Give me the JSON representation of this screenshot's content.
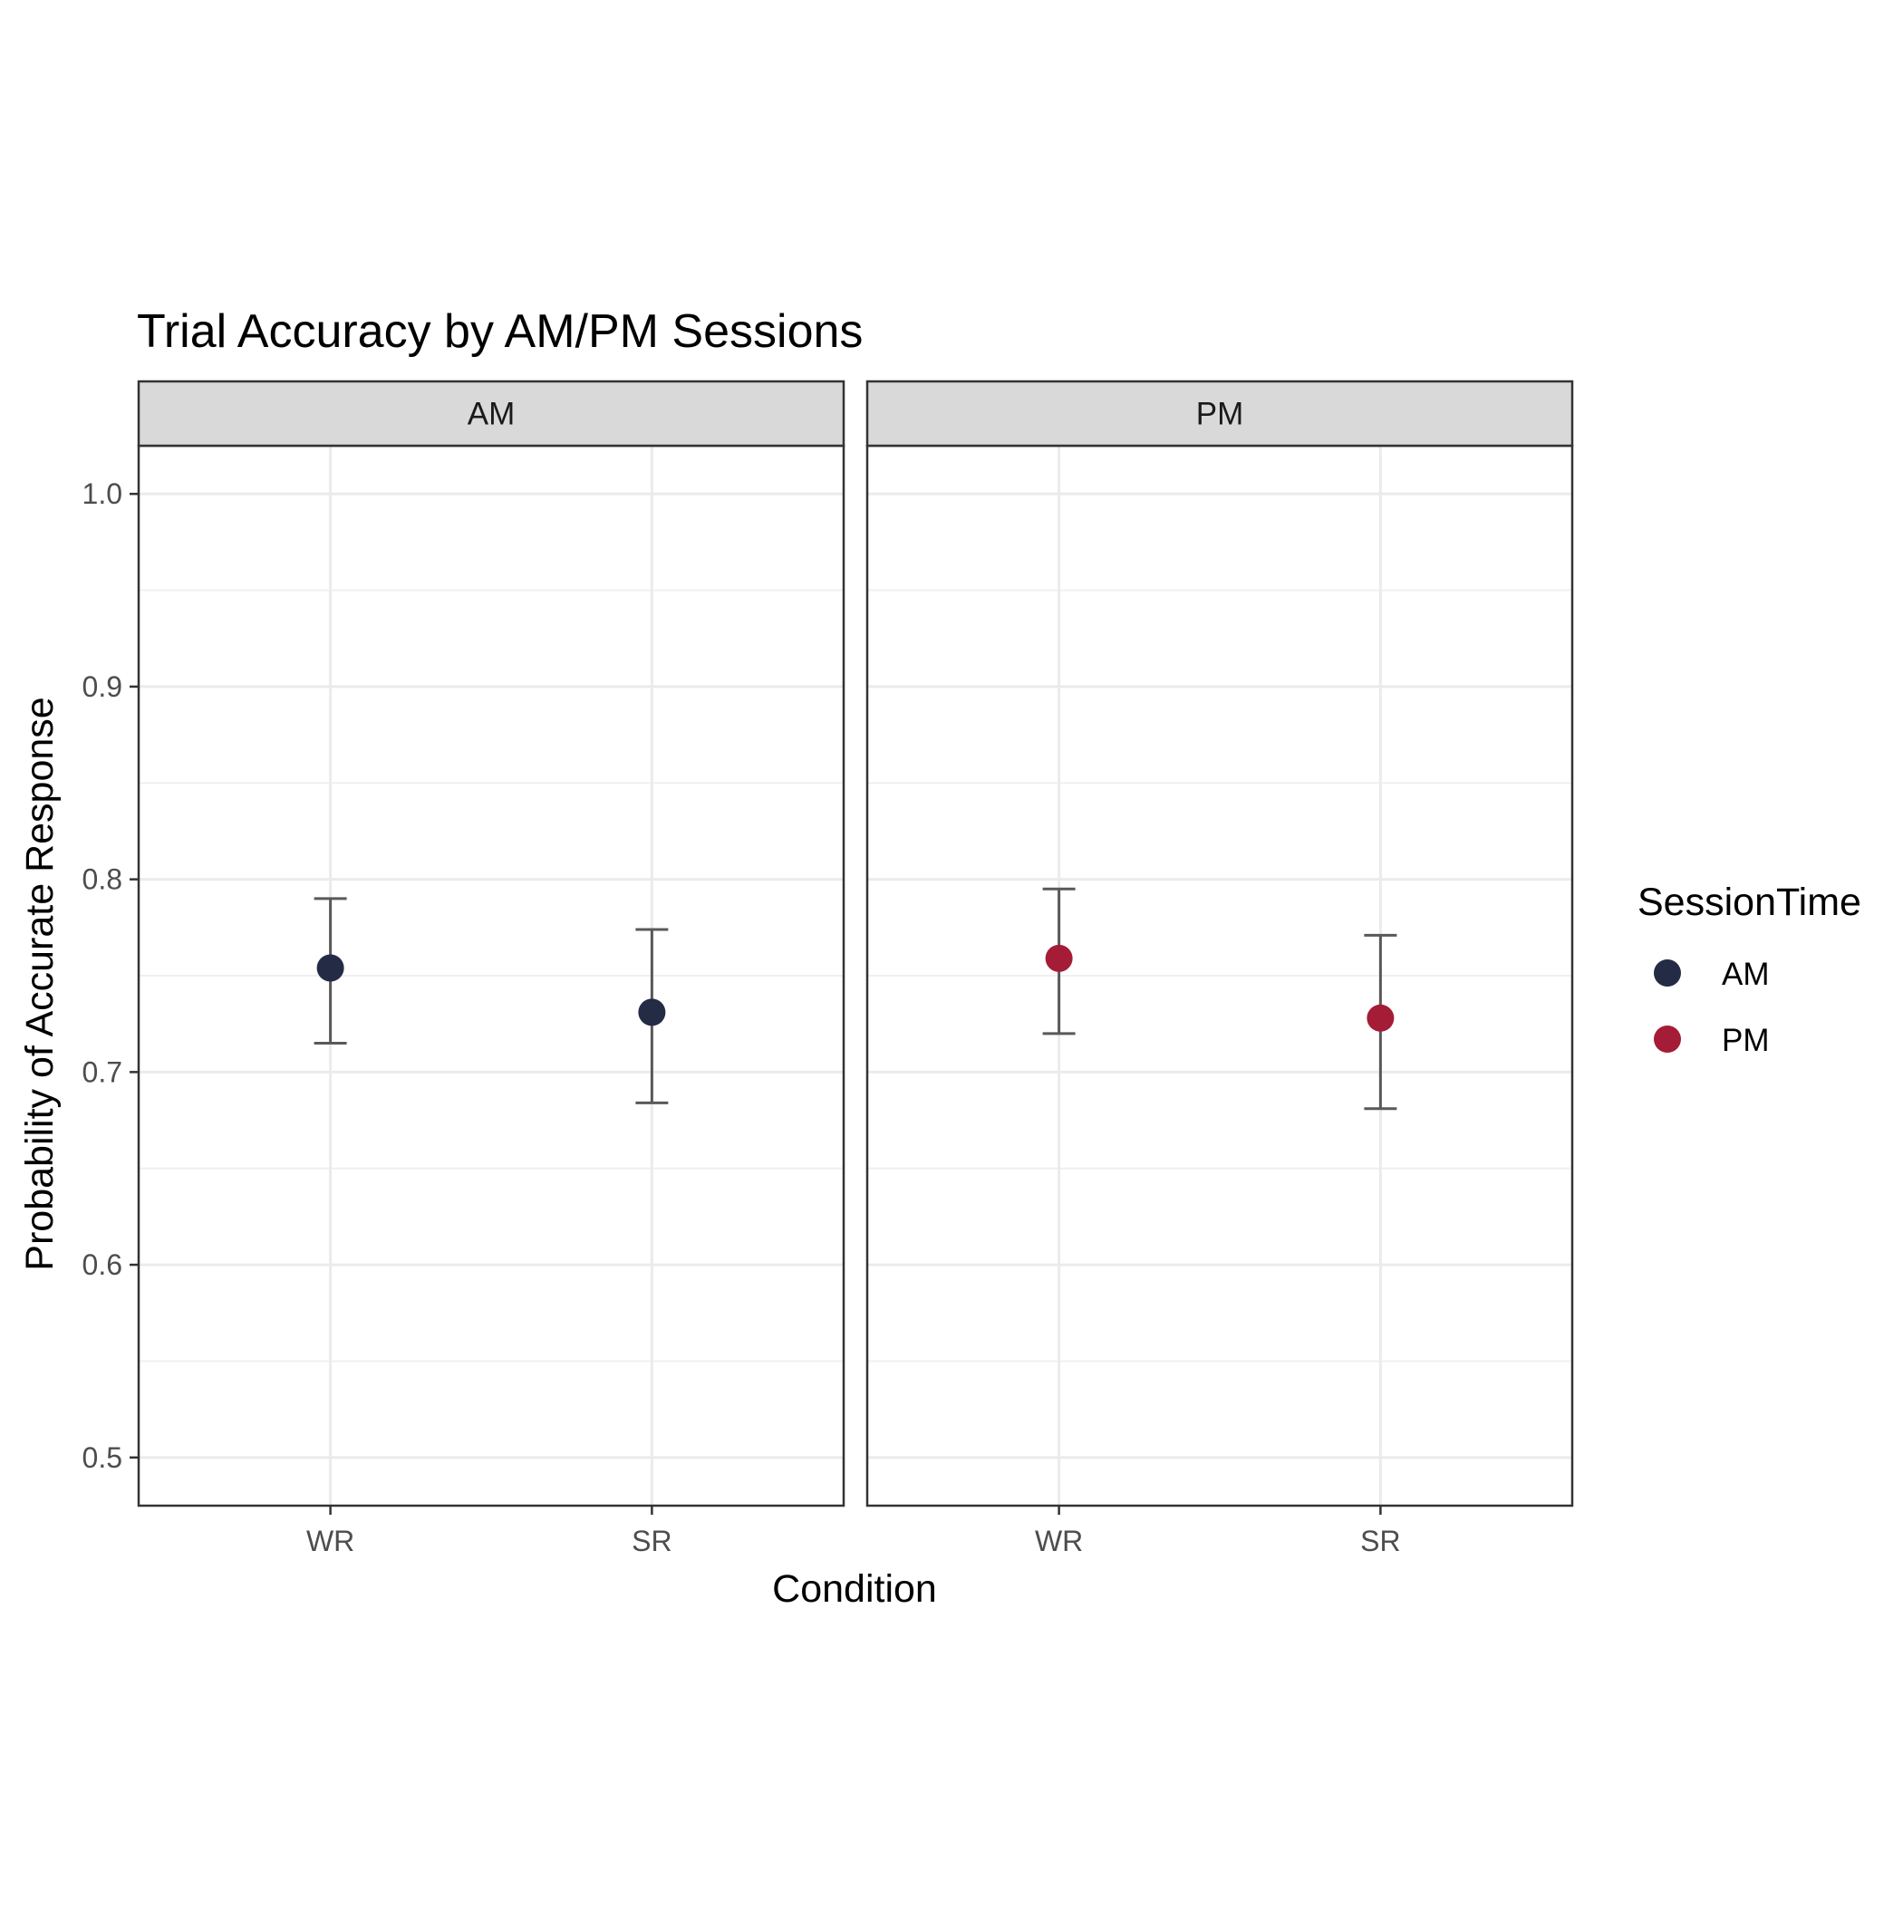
{
  "chart_data": {
    "type": "scatter",
    "title": "Trial Accuracy by AM/PM Sessions",
    "xlabel": "Condition",
    "ylabel": "Probability of Accurate Response",
    "categories": [
      "WR",
      "SR"
    ],
    "ylim": [
      0.475,
      1.025
    ],
    "yticks": [
      0.5,
      0.6,
      0.7,
      0.8,
      0.9,
      1.0
    ],
    "ytick_labels": [
      "0.5",
      "0.6",
      "0.7",
      "0.8",
      "0.9",
      "1.0"
    ],
    "grid": true,
    "legend": {
      "title": "SessionTime",
      "position": "right",
      "entries": [
        {
          "label": "AM",
          "color": "#232b45"
        },
        {
          "label": "PM",
          "color": "#a51c36"
        }
      ]
    },
    "facets": [
      {
        "label": "AM",
        "series": "AM",
        "color": "#232b45",
        "points": [
          {
            "x": "WR",
            "y": 0.754,
            "ymin": 0.715,
            "ymax": 0.79
          },
          {
            "x": "SR",
            "y": 0.731,
            "ymin": 0.684,
            "ymax": 0.774
          }
        ]
      },
      {
        "label": "PM",
        "series": "PM",
        "color": "#a51c36",
        "points": [
          {
            "x": "WR",
            "y": 0.759,
            "ymin": 0.72,
            "ymax": 0.795
          },
          {
            "x": "SR",
            "y": 0.728,
            "ymin": 0.681,
            "ymax": 0.771
          }
        ]
      }
    ]
  }
}
